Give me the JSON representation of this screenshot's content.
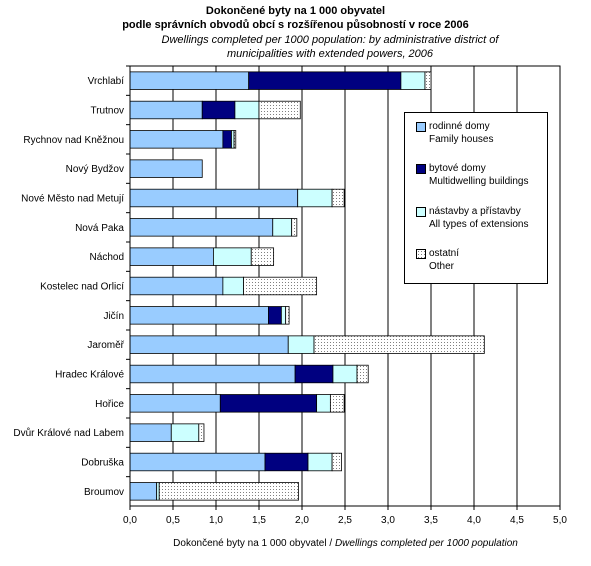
{
  "header": {
    "title_line1": "Dokončené byty na 1 000 obyvatel",
    "title_line2": "podle správních obvodů obcí s rozšířenou působností v roce 2006",
    "subtitle": "Dwellings completed per 1000 population: by administrative district of municipalities with extended powers, 2006"
  },
  "axis": {
    "xlabel_cz": "Dokončené byty na 1 000 obyvatel",
    "xlabel_sep": " / ",
    "xlabel_en": "Dwellings completed per 1000 population"
  },
  "legend": {
    "items": [
      {
        "cz": "rodinné domy",
        "en": "Family houses"
      },
      {
        "cz": "bytové domy",
        "en": "Multidwelling buildings"
      },
      {
        "cz": "nástavby a přístavby",
        "en": "All types of extensions"
      },
      {
        "cz": "ostatní",
        "en": "Other"
      }
    ]
  },
  "colors": {
    "family": "#99ccff",
    "multi": "#000080",
    "ext": "#ccffff",
    "other": "#ffffff",
    "plot_bg": "#ffffff",
    "grid": "#000000"
  },
  "chart_data": {
    "type": "bar",
    "orientation": "horizontal",
    "stacked": true,
    "categories": [
      "Vrchlabí",
      "Trutnov",
      "Rychnov nad Kněžnou",
      "Nový Bydžov",
      "Nové Město nad Metují",
      "Nová Paka",
      "Náchod",
      "Kostelec nad Orlicí",
      "Jičín",
      "Jaroměř",
      "Hradec Králové",
      "Hořice",
      "Dvůr Králové nad Labem",
      "Dobruška",
      "Broumov"
    ],
    "series": [
      {
        "name": "rodinné domy / Family houses",
        "values": [
          1.38,
          0.84,
          1.08,
          0.84,
          1.95,
          1.66,
          0.97,
          1.08,
          1.61,
          1.84,
          1.92,
          1.05,
          0.48,
          1.57,
          0.31
        ]
      },
      {
        "name": "bytové domy / Multidwelling buildings",
        "values": [
          1.77,
          0.38,
          0.1,
          0.0,
          0.0,
          0.0,
          0.0,
          0.0,
          0.15,
          0.0,
          0.44,
          1.12,
          0.0,
          0.5,
          0.0
        ]
      },
      {
        "name": "nástavby a přístavby / All types of extensions",
        "values": [
          0.28,
          0.28,
          0.03,
          0.0,
          0.4,
          0.22,
          0.44,
          0.24,
          0.05,
          0.3,
          0.28,
          0.16,
          0.32,
          0.28,
          0.03
        ]
      },
      {
        "name": "ostatní / Other",
        "values": [
          0.07,
          0.48,
          0.02,
          0.0,
          0.14,
          0.06,
          0.26,
          0.85,
          0.04,
          1.98,
          0.13,
          0.16,
          0.06,
          0.11,
          1.62
        ]
      }
    ],
    "xlim": [
      0,
      5
    ],
    "xticks": [
      "0,0",
      "0,5",
      "1,0",
      "1,5",
      "2,0",
      "2,5",
      "3,0",
      "3,5",
      "4,0",
      "4,5",
      "5,0"
    ],
    "grid": "vertical gridlines",
    "legend_position": "right"
  }
}
